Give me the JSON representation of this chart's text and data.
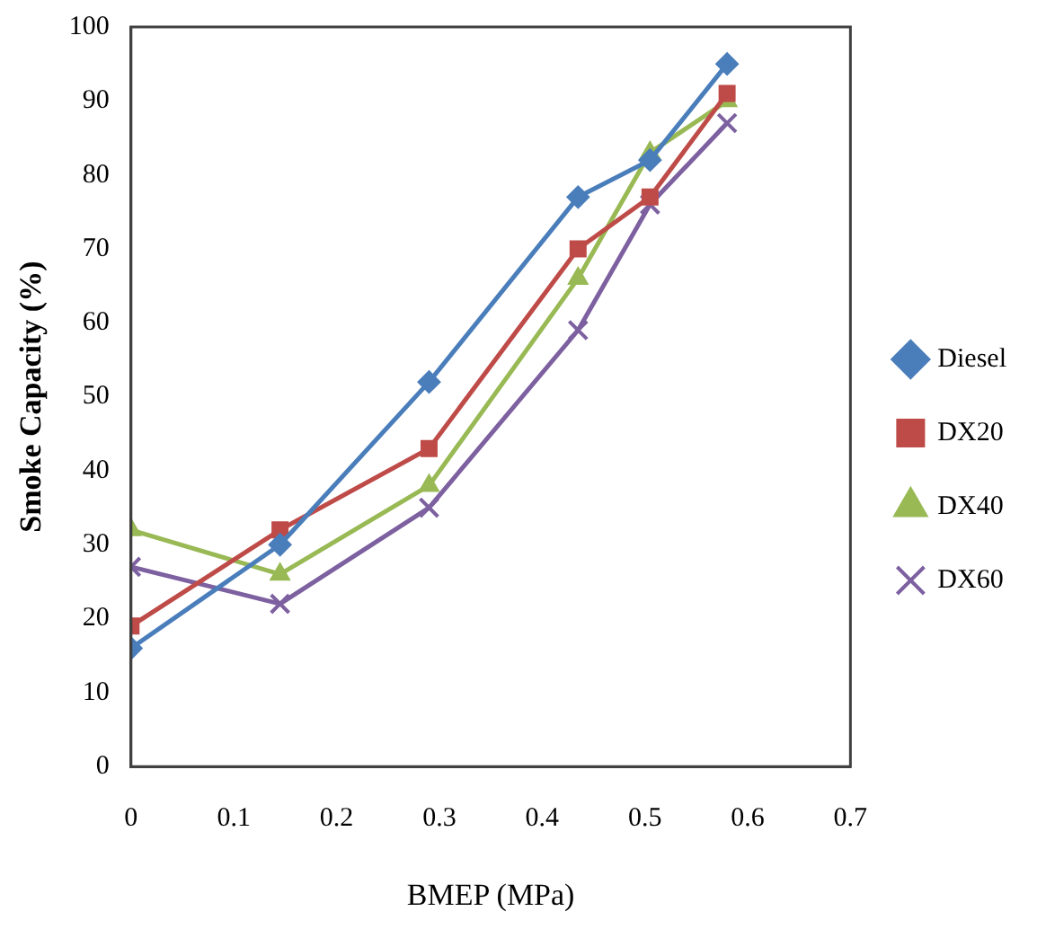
{
  "chart_data": {
    "type": "line",
    "xlabel": "BMEP (MPa)",
    "ylabel": "Smoke Capacity (%)",
    "xlim": [
      0,
      0.7
    ],
    "xticks": [
      0,
      0.1,
      0.2,
      0.3,
      0.4,
      0.5,
      0.6,
      0.7
    ],
    "ylim": [
      0,
      100
    ],
    "yticks": [
      0,
      10,
      20,
      30,
      40,
      50,
      60,
      70,
      80,
      90,
      100
    ],
    "grid": false,
    "legend": "right",
    "line_style": "solid",
    "x": [
      0,
      0.145,
      0.29,
      0.435,
      0.505,
      0.58
    ],
    "series": [
      {
        "name": "Diesel",
        "color": "#4a7ebb",
        "marker": "diamond",
        "values": [
          16,
          30,
          52,
          77,
          82,
          95
        ]
      },
      {
        "name": "DX20",
        "color": "#be4b48",
        "marker": "square",
        "values": [
          19,
          32,
          43,
          70,
          77,
          91
        ]
      },
      {
        "name": "DX40",
        "color": "#98b954",
        "marker": "triangle",
        "values": [
          32,
          26,
          38,
          66,
          83,
          90
        ]
      },
      {
        "name": "DX60",
        "color": "#7d60a0",
        "marker": "cross",
        "values": [
          27,
          22,
          35,
          59,
          76,
          87
        ]
      }
    ]
  }
}
